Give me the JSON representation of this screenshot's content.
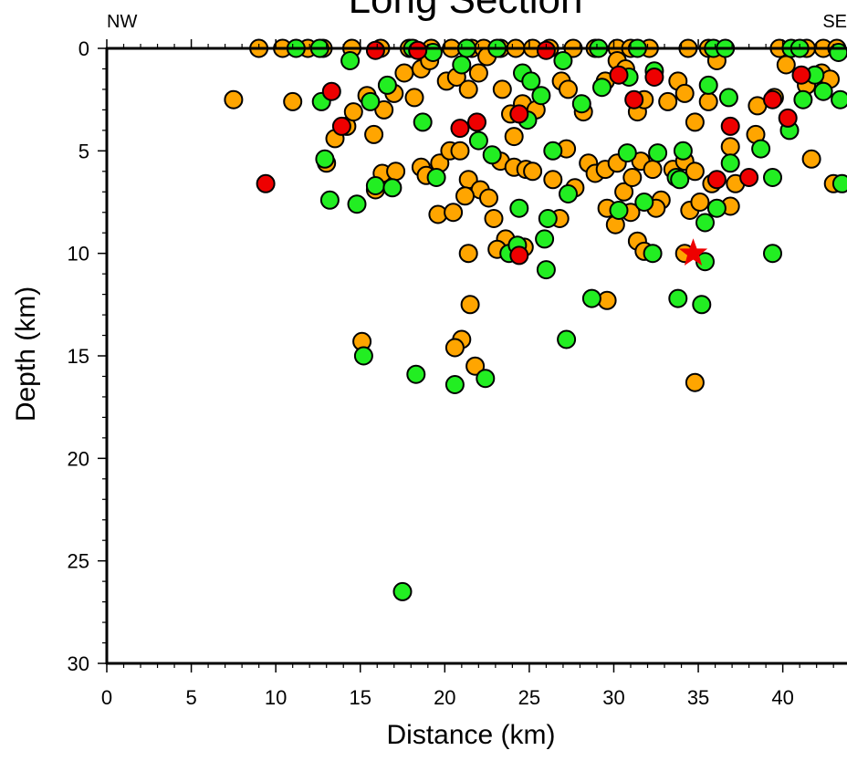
{
  "chart_data": {
    "type": "scatter",
    "title": "Long Section",
    "xlabel": "Distance (km)",
    "ylabel": "Depth (km)",
    "corner_labels": {
      "left": "NW",
      "right": "SE"
    },
    "xlim": [
      0,
      43.8
    ],
    "ylim": [
      0,
      30
    ],
    "y_inverted": true,
    "x_ticks": [
      0,
      5,
      10,
      15,
      20,
      25,
      30,
      35,
      40
    ],
    "y_ticks": [
      0,
      5,
      10,
      15,
      20,
      25,
      30
    ],
    "grid": false,
    "colors": {
      "orange": "#ffa500",
      "green": "#22ee22",
      "red": "#ee0000",
      "outline": "#000000"
    },
    "series": [
      {
        "color": "orange",
        "points": [
          [
            9,
            0
          ],
          [
            10.4,
            0
          ],
          [
            11.9,
            0
          ],
          [
            12.8,
            0
          ],
          [
            14.5,
            0
          ],
          [
            16.2,
            0
          ],
          [
            17.9,
            0
          ],
          [
            19.2,
            0
          ],
          [
            20.4,
            0
          ],
          [
            21.6,
            0
          ],
          [
            22.3,
            0
          ],
          [
            23.3,
            0
          ],
          [
            24.2,
            0
          ],
          [
            25.2,
            0
          ],
          [
            26.2,
            0
          ],
          [
            27.6,
            0
          ],
          [
            28.9,
            0
          ],
          [
            30.2,
            0
          ],
          [
            31.0,
            0
          ],
          [
            32.1,
            0
          ],
          [
            34.4,
            0
          ],
          [
            35.6,
            0
          ],
          [
            39.8,
            0
          ],
          [
            41.4,
            0
          ],
          [
            42.4,
            0
          ],
          [
            43.2,
            0
          ],
          [
            7.5,
            2.5
          ],
          [
            11.0,
            2.6
          ],
          [
            13.5,
            4.4
          ],
          [
            14.2,
            3.8
          ],
          [
            14.6,
            3.1
          ],
          [
            15.4,
            2.3
          ],
          [
            15.8,
            4.2
          ],
          [
            16.4,
            3.0
          ],
          [
            17.0,
            2.2
          ],
          [
            17.6,
            1.2
          ],
          [
            18.2,
            2.4
          ],
          [
            18.6,
            1.0
          ],
          [
            19.1,
            0.6
          ],
          [
            20.1,
            1.6
          ],
          [
            20.7,
            1.4
          ],
          [
            21.4,
            2.0
          ],
          [
            22.0,
            1.2
          ],
          [
            22.5,
            0.4
          ],
          [
            23.4,
            2.0
          ],
          [
            23.9,
            3.2
          ],
          [
            24.1,
            4.3
          ],
          [
            24.6,
            2.7
          ],
          [
            25.4,
            3.0
          ],
          [
            26.9,
            1.6
          ],
          [
            27.3,
            2.0
          ],
          [
            28.2,
            3.1
          ],
          [
            29.5,
            1.6
          ],
          [
            30.2,
            0.6
          ],
          [
            30.7,
            1.0
          ],
          [
            31.4,
            3.1
          ],
          [
            31.8,
            2.5
          ],
          [
            33.2,
            2.6
          ],
          [
            33.8,
            1.6
          ],
          [
            34.2,
            2.2
          ],
          [
            34.8,
            3.6
          ],
          [
            35.6,
            2.6
          ],
          [
            36.1,
            0.6
          ],
          [
            38.5,
            2.8
          ],
          [
            39.5,
            2.4
          ],
          [
            40.2,
            0.8
          ],
          [
            41.4,
            1.8
          ],
          [
            42.3,
            1.2
          ],
          [
            42.8,
            1.5
          ],
          [
            13.0,
            5.6
          ],
          [
            15.9,
            6.9
          ],
          [
            16.3,
            6.1
          ],
          [
            17.1,
            6.0
          ],
          [
            18.6,
            5.8
          ],
          [
            18.9,
            6.2
          ],
          [
            19.7,
            5.6
          ],
          [
            20.3,
            5.0
          ],
          [
            20.9,
            5.0
          ],
          [
            21.4,
            6.4
          ],
          [
            22.1,
            6.9
          ],
          [
            22.6,
            7.3
          ],
          [
            23.3,
            5.5
          ],
          [
            24.1,
            5.8
          ],
          [
            24.8,
            5.9
          ],
          [
            25.2,
            6.0
          ],
          [
            26.4,
            6.4
          ],
          [
            27.2,
            4.9
          ],
          [
            27.7,
            6.8
          ],
          [
            28.5,
            5.6
          ],
          [
            28.9,
            6.1
          ],
          [
            29.5,
            5.9
          ],
          [
            30.2,
            5.6
          ],
          [
            30.6,
            7.0
          ],
          [
            31.1,
            6.3
          ],
          [
            31.6,
            5.5
          ],
          [
            32.3,
            5.9
          ],
          [
            32.8,
            7.4
          ],
          [
            33.5,
            5.9
          ],
          [
            34.2,
            5.5
          ],
          [
            34.8,
            6.0
          ],
          [
            35.8,
            6.6
          ],
          [
            36.9,
            4.8
          ],
          [
            37.2,
            6.6
          ],
          [
            38.4,
            4.2
          ],
          [
            41.7,
            5.4
          ],
          [
            43.0,
            6.6
          ],
          [
            19.6,
            8.1
          ],
          [
            20.5,
            8.0
          ],
          [
            21.2,
            7.2
          ],
          [
            22.9,
            8.3
          ],
          [
            23.6,
            9.3
          ],
          [
            24.7,
            9.7
          ],
          [
            26.8,
            8.3
          ],
          [
            29.6,
            7.8
          ],
          [
            30.1,
            8.6
          ],
          [
            31.0,
            8.0
          ],
          [
            31.4,
            9.4
          ],
          [
            31.8,
            9.9
          ],
          [
            32.5,
            7.8
          ],
          [
            34.5,
            7.9
          ],
          [
            35.1,
            7.5
          ],
          [
            36.9,
            7.7
          ],
          [
            21.4,
            10.0
          ],
          [
            23.1,
            9.8
          ],
          [
            15.1,
            14.3
          ],
          [
            21.0,
            14.2
          ],
          [
            21.5,
            12.5
          ],
          [
            20.6,
            14.6
          ],
          [
            21.8,
            15.5
          ],
          [
            29.6,
            12.3
          ],
          [
            34.2,
            10.0
          ],
          [
            34.8,
            16.3
          ]
        ]
      },
      {
        "color": "green",
        "points": [
          [
            11.2,
            0
          ],
          [
            12.6,
            0
          ],
          [
            18.1,
            0
          ],
          [
            21.3,
            0
          ],
          [
            23.1,
            0
          ],
          [
            29.1,
            0
          ],
          [
            31.4,
            0
          ],
          [
            35.9,
            0
          ],
          [
            36.6,
            0
          ],
          [
            40.5,
            0
          ],
          [
            41.0,
            0
          ],
          [
            12.7,
            2.6
          ],
          [
            14.4,
            0.6
          ],
          [
            15.6,
            2.6
          ],
          [
            16.6,
            1.8
          ],
          [
            19.3,
            0.2
          ],
          [
            21.0,
            0.8
          ],
          [
            24.6,
            1.2
          ],
          [
            25.1,
            1.6
          ],
          [
            25.7,
            2.3
          ],
          [
            24.9,
            3.5
          ],
          [
            27.0,
            0.6
          ],
          [
            28.1,
            2.7
          ],
          [
            29.3,
            1.9
          ],
          [
            30.9,
            1.4
          ],
          [
            32.4,
            1.1
          ],
          [
            35.6,
            1.8
          ],
          [
            36.8,
            2.4
          ],
          [
            41.2,
            2.5
          ],
          [
            41.9,
            1.3
          ],
          [
            43.4,
            2.5
          ],
          [
            43.3,
            0.2
          ],
          [
            12.9,
            5.4
          ],
          [
            18.7,
            3.6
          ],
          [
            22.8,
            5.2
          ],
          [
            26.4,
            5.0
          ],
          [
            30.8,
            5.1
          ],
          [
            32.6,
            5.1
          ],
          [
            33.7,
            6.3
          ],
          [
            34.1,
            5.0
          ],
          [
            36.9,
            5.6
          ],
          [
            38.7,
            4.9
          ],
          [
            40.4,
            4.0
          ],
          [
            42.4,
            2.1
          ],
          [
            13.2,
            7.4
          ],
          [
            14.8,
            7.6
          ],
          [
            15.9,
            6.7
          ],
          [
            16.9,
            6.8
          ],
          [
            19.5,
            6.3
          ],
          [
            22.0,
            4.5
          ],
          [
            24.4,
            7.8
          ],
          [
            26.1,
            8.3
          ],
          [
            27.3,
            7.1
          ],
          [
            30.3,
            7.9
          ],
          [
            31.8,
            7.5
          ],
          [
            33.9,
            6.4
          ],
          [
            35.4,
            8.5
          ],
          [
            36.1,
            7.8
          ],
          [
            39.4,
            6.3
          ],
          [
            43.5,
            6.6
          ],
          [
            23.8,
            10.0
          ],
          [
            25.9,
            9.3
          ],
          [
            24.3,
            9.6
          ],
          [
            26.0,
            10.8
          ],
          [
            32.3,
            10.0
          ],
          [
            35.4,
            10.4
          ],
          [
            39.4,
            10.0
          ],
          [
            28.7,
            12.2
          ],
          [
            33.8,
            12.2
          ],
          [
            35.2,
            12.5
          ],
          [
            27.2,
            14.2
          ],
          [
            15.2,
            15.0
          ],
          [
            18.3,
            15.9
          ],
          [
            20.6,
            16.4
          ],
          [
            22.4,
            16.1
          ],
          [
            17.5,
            26.5
          ]
        ]
      },
      {
        "color": "red",
        "points": [
          [
            9.4,
            6.6
          ],
          [
            13.3,
            2.1
          ],
          [
            13.9,
            3.8
          ],
          [
            15.9,
            0.1
          ],
          [
            18.4,
            0.1
          ],
          [
            20.9,
            3.9
          ],
          [
            21.9,
            3.6
          ],
          [
            24.4,
            3.2
          ],
          [
            24.4,
            10.1
          ],
          [
            26.0,
            0.1
          ],
          [
            30.3,
            1.3
          ],
          [
            31.2,
            2.5
          ],
          [
            32.4,
            1.4
          ],
          [
            36.1,
            6.4
          ],
          [
            36.9,
            3.8
          ],
          [
            38.0,
            6.3
          ],
          [
            39.4,
            2.5
          ],
          [
            40.3,
            3.4
          ],
          [
            41.1,
            1.3
          ]
        ]
      }
    ],
    "marker": {
      "shape": "star",
      "color": "red",
      "x": 34.7,
      "y": 10.0
    }
  }
}
